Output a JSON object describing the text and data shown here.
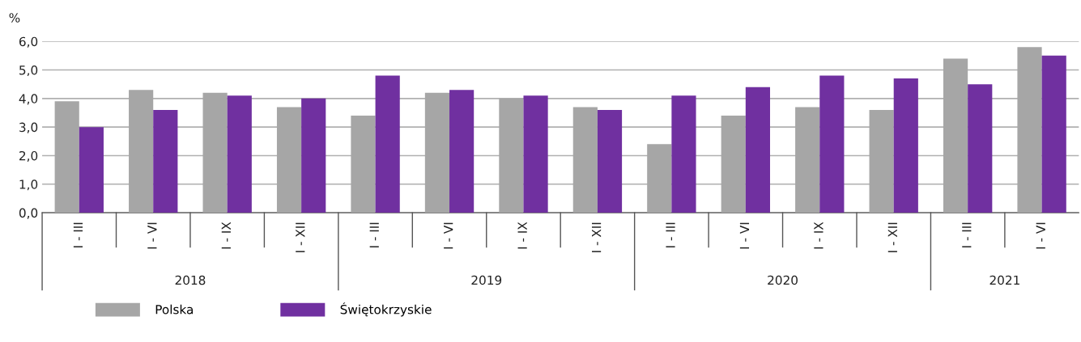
{
  "chart_data": {
    "type": "bar",
    "ylabel": "%",
    "categories": [
      "I - III",
      "I - VI",
      "I - IX",
      "I - XII",
      "I - III",
      "I - VI",
      "I - IX",
      "I - XII",
      "I - III",
      "I - VI",
      "I - IX",
      "I - XII",
      "I - III",
      "I - VI"
    ],
    "series": [
      {
        "name": "Polska",
        "color": "#a6a6a6",
        "values": [
          3.9,
          4.3,
          4.2,
          3.7,
          3.4,
          4.2,
          4.0,
          3.7,
          2.4,
          3.4,
          3.7,
          3.6,
          5.4,
          5.8
        ]
      },
      {
        "name": "Świętokrzyskie",
        "color": "#7030a0",
        "values": [
          3.0,
          3.6,
          4.1,
          4.0,
          4.8,
          4.3,
          4.1,
          3.6,
          4.1,
          4.4,
          4.8,
          4.7,
          4.5,
          5.5
        ]
      }
    ],
    "ylim": [
      0,
      6
    ],
    "yticks": [
      {
        "value": 0,
        "label": "0,0"
      },
      {
        "value": 1,
        "label": "1,0"
      },
      {
        "value": 2,
        "label": "2,0"
      },
      {
        "value": 3,
        "label": "3,0"
      },
      {
        "value": 4,
        "label": "4,0"
      },
      {
        "value": 5,
        "label": "5,0"
      },
      {
        "value": 6,
        "label": "6,0"
      }
    ],
    "grid": "y",
    "legend": "bottom left",
    "annotations": [
      "2018",
      "2019",
      "2020",
      "2021"
    ]
  }
}
